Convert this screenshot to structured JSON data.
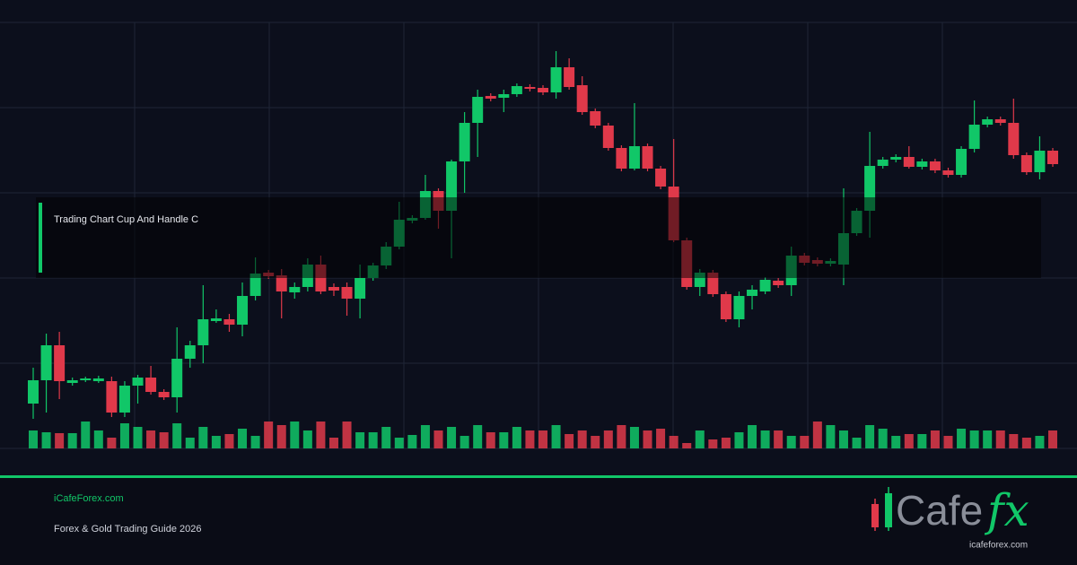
{
  "chart_data": {
    "type": "candlestick",
    "open": [
      50,
      76,
      115,
      73,
      76,
      75,
      75,
      40,
      70,
      79,
      63,
      57,
      100,
      115,
      142,
      144,
      138,
      170,
      196,
      193,
      174,
      180,
      205,
      180,
      180,
      167,
      190,
      204,
      225,
      254,
      257,
      287,
      265,
      320,
      363,
      393,
      391,
      395,
      403,
      402,
      397,
      425,
      405,
      376,
      360,
      335,
      312,
      337,
      312,
      292,
      232,
      180,
      196,
      172,
      144,
      170,
      175,
      187,
      182,
      215,
      210,
      206,
      205,
      240,
      265,
      315,
      322,
      325,
      314,
      320,
      310,
      305,
      334,
      361,
      367,
      363,
      327,
      308,
      332
    ],
    "high": [
      90,
      128,
      130,
      79,
      80,
      81,
      80,
      75,
      82,
      92,
      66,
      135,
      120,
      182,
      155,
      150,
      185,
      213,
      199,
      200,
      185,
      212,
      215,
      184,
      185,
      205,
      207,
      230,
      275,
      260,
      305,
      290,
      322,
      375,
      400,
      396,
      400,
      407,
      406,
      405,
      443,
      435,
      415,
      379,
      363,
      338,
      385,
      340,
      315,
      345,
      235,
      200,
      199,
      175,
      175,
      182,
      191,
      190,
      225,
      218,
      213,
      212,
      290,
      268,
      353,
      325,
      328,
      337,
      323,
      323,
      313,
      337,
      388,
      370,
      370,
      390,
      330,
      348,
      335
    ],
    "low": [
      33,
      40,
      55,
      70,
      74,
      73,
      35,
      35,
      50,
      60,
      54,
      40,
      90,
      95,
      140,
      130,
      125,
      165,
      189,
      145,
      167,
      175,
      172,
      170,
      148,
      145,
      187,
      200,
      222,
      251,
      255,
      245,
      212,
      285,
      325,
      387,
      375,
      392,
      398,
      394,
      390,
      400,
      372,
      357,
      332,
      309,
      310,
      309,
      289,
      230,
      177,
      170,
      169,
      141,
      135,
      155,
      172,
      179,
      170,
      204,
      203,
      203,
      182,
      237,
      235,
      312,
      319,
      312,
      311,
      307,
      302,
      302,
      330,
      358,
      360,
      323,
      305,
      300,
      314
    ],
    "close": [
      76,
      115,
      75,
      76,
      78,
      78,
      40,
      70,
      79,
      63,
      57,
      100,
      115,
      144,
      145,
      138,
      170,
      195,
      192,
      175,
      180,
      205,
      175,
      176,
      167,
      190,
      204,
      225,
      255,
      257,
      287,
      265,
      320,
      363,
      392,
      390,
      395,
      404,
      401,
      397,
      425,
      403,
      375,
      360,
      335,
      312,
      337,
      312,
      292,
      232,
      180,
      196,
      172,
      144,
      170,
      177,
      188,
      182,
      215,
      207,
      206,
      209,
      240,
      265,
      315,
      322,
      325,
      314,
      320,
      310,
      305,
      334,
      361,
      367,
      363,
      327,
      308,
      332,
      317
    ],
    "volume": [
      20,
      18,
      17,
      17,
      30,
      20,
      12,
      28,
      24,
      20,
      18,
      28,
      12,
      24,
      14,
      16,
      22,
      14,
      30,
      26,
      30,
      20,
      30,
      12,
      30,
      18,
      18,
      24,
      12,
      15,
      26,
      20,
      24,
      14,
      26,
      18,
      18,
      24,
      20,
      20,
      26,
      16,
      20,
      14,
      20,
      26,
      24,
      20,
      22,
      14,
      6,
      20,
      10,
      12,
      18,
      26,
      20,
      20,
      14,
      14,
      30,
      26,
      20,
      12,
      26,
      22,
      14,
      16,
      16,
      20,
      14,
      22,
      20,
      20,
      20,
      16,
      12,
      14,
      20
    ],
    "ylim": [
      0,
      475
    ],
    "volume_ylim": [
      0,
      40
    ],
    "up_color": "#11c768",
    "down_color": "#e0394a"
  },
  "overlay": {
    "title": "Trading Chart Cup And Handle C"
  },
  "footer": {
    "site": "iCafeForex.com",
    "subtitle": "Forex & Gold Trading Guide 2026",
    "logo_word": "Cafe",
    "logo_accent": "fx",
    "logo_url": "icafeforex.com"
  }
}
